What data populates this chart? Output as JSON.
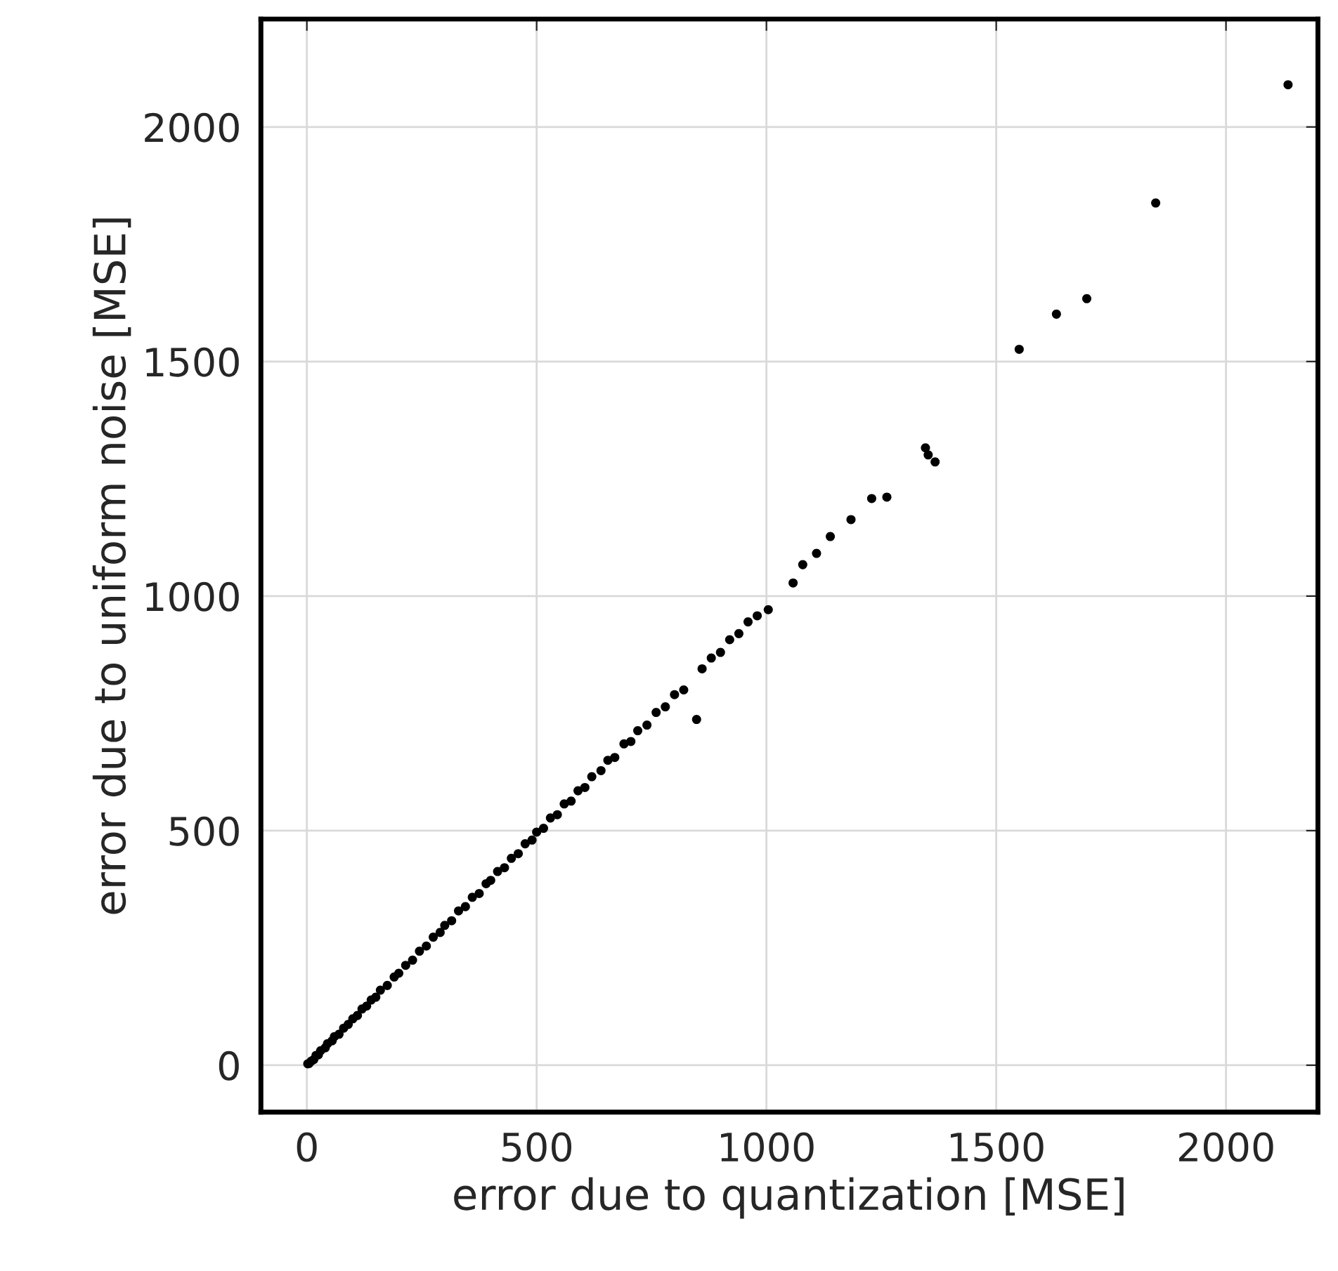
{
  "chart_data": {
    "type": "scatter",
    "xlabel": "error due to quantization [MSE]",
    "ylabel": "error due to uniform noise [MSE]",
    "xlim": [
      -100,
      2200
    ],
    "ylim": [
      -100,
      2230
    ],
    "xticks": [
      0,
      500,
      1000,
      1500,
      2000
    ],
    "yticks": [
      0,
      500,
      1000,
      1500,
      2000
    ],
    "grid": true,
    "marker": "circle",
    "series": [
      {
        "color": "#000000",
        "x": [
          2,
          5,
          10,
          15,
          20,
          25,
          30,
          40,
          45,
          55,
          60,
          70,
          80,
          90,
          100,
          110,
          120,
          130,
          140,
          150,
          160,
          175,
          190,
          200,
          215,
          230,
          245,
          260,
          275,
          290,
          300,
          315,
          330,
          345,
          360,
          375,
          390,
          400,
          415,
          430,
          445,
          460,
          475,
          490,
          500,
          515,
          530,
          545,
          560,
          575,
          590,
          605,
          620,
          640,
          655,
          670,
          690,
          705,
          720,
          740,
          760,
          780,
          800,
          820,
          848,
          860,
          880,
          900,
          920,
          940,
          960,
          980,
          1004,
          1058,
          1079,
          1109,
          1139,
          1184,
          1229,
          1262,
          1346,
          1352,
          1367,
          1550,
          1631,
          1697,
          1847,
          2135
        ],
        "values": [
          3,
          4,
          9,
          12,
          21,
          22,
          31,
          37,
          46,
          52,
          61,
          66,
          79,
          87,
          99,
          106,
          120,
          126,
          139,
          145,
          160,
          170,
          188,
          196,
          213,
          224,
          243,
          254,
          273,
          283,
          298,
          308,
          329,
          338,
          358,
          366,
          387,
          394,
          413,
          421,
          441,
          451,
          472,
          480,
          497,
          505,
          527,
          534,
          557,
          563,
          585,
          592,
          615,
          628,
          650,
          656,
          685,
          690,
          713,
          725,
          752,
          764,
          790,
          800,
          737,
          845,
          868,
          880,
          907,
          920,
          945,
          958,
          971,
          1028,
          1067,
          1091,
          1127,
          1163,
          1208,
          1211,
          1316,
          1301,
          1286,
          1526,
          1601,
          1634,
          1838,
          2090
        ]
      }
    ]
  }
}
